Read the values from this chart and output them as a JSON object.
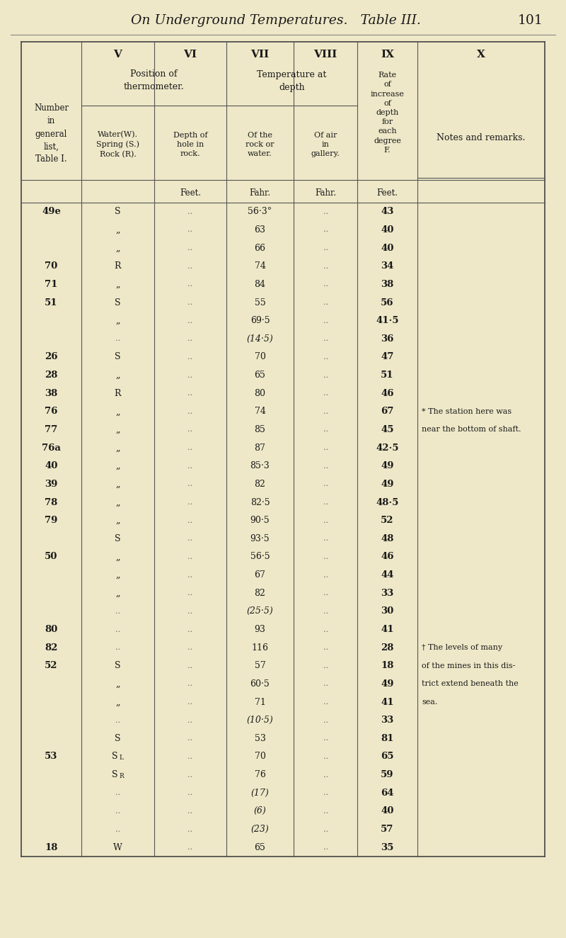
{
  "page_header": "On Underground Temperatures.   Table III.        101",
  "bg_color": "#eee8c8",
  "text_color": "#1a1a1a",
  "rows": [
    [
      "49e",
      "S",
      "..",
      "56·3°",
      "..",
      "43",
      ""
    ],
    [
      "",
      "„",
      "..",
      "63",
      "..",
      "40",
      ""
    ],
    [
      "",
      "„",
      "..",
      "66",
      "..",
      "40",
      ""
    ],
    [
      "70",
      "R",
      "..",
      "74",
      "..",
      "34",
      ""
    ],
    [
      "71",
      "„",
      "..",
      "84",
      "..",
      "38",
      ""
    ],
    [
      "51",
      "S",
      "..",
      "55",
      "..",
      "56",
      ""
    ],
    [
      "",
      "„",
      "..",
      "69·5",
      "..",
      "41·5",
      ""
    ],
    [
      "",
      "..",
      "..",
      "(14·5)",
      "..",
      "36",
      ""
    ],
    [
      "26",
      "S",
      "..",
      "70",
      "..",
      "47",
      ""
    ],
    [
      "28",
      "„",
      "..",
      "65",
      "..",
      "51",
      ""
    ],
    [
      "38",
      "R",
      "..",
      "80",
      "..",
      "46",
      ""
    ],
    [
      "76",
      "„",
      "..",
      "74",
      "..",
      "67",
      "* The station here was"
    ],
    [
      "77",
      "„",
      "..",
      "85",
      "..",
      "45",
      "near the bottom of shaft."
    ],
    [
      "76a",
      "„",
      "..",
      "87",
      "..",
      "42·5",
      ""
    ],
    [
      "40",
      "„",
      "..",
      "85·3",
      "..",
      "49",
      ""
    ],
    [
      "39",
      "„",
      "..",
      "82",
      "..",
      "49",
      ""
    ],
    [
      "78",
      "„",
      "..",
      "82·5",
      "..",
      "48·5",
      ""
    ],
    [
      "79",
      "„",
      "..",
      "90·5",
      "..",
      "52",
      ""
    ],
    [
      "",
      "S",
      "..",
      "93·5",
      "..",
      "48",
      ""
    ],
    [
      "50",
      "„",
      "..",
      "56·5",
      "..",
      "46",
      ""
    ],
    [
      "",
      "„",
      "..",
      "67",
      "..",
      "44",
      ""
    ],
    [
      "",
      "„",
      "..",
      "82",
      "..",
      "33",
      ""
    ],
    [
      "",
      "..",
      "..",
      "(25·5)",
      "..",
      "30",
      ""
    ],
    [
      "80",
      "..",
      "..",
      "93",
      "..",
      "41",
      ""
    ],
    [
      "82",
      "..",
      "..",
      "116",
      "..",
      "28",
      "† The levels of many"
    ],
    [
      "52",
      "S",
      "..",
      "57",
      "..",
      "18",
      "of the mines in this dis-"
    ],
    [
      "",
      "„",
      "..",
      "60·5",
      "..",
      "49",
      "trict extend beneath the"
    ],
    [
      "",
      "„",
      "..",
      "71",
      "..",
      "41",
      "sea."
    ],
    [
      "",
      "..",
      "..",
      "(10·5)",
      "..",
      "33",
      ""
    ],
    [
      "",
      "S",
      "..",
      "53",
      "..",
      "81",
      ""
    ],
    [
      "53",
      "Sₗ",
      "..",
      "70",
      "..",
      "65",
      ""
    ],
    [
      "",
      "Sᴿ",
      "..",
      "76",
      "..",
      "59",
      ""
    ],
    [
      "",
      "..",
      "..",
      "(17)",
      "..",
      "64",
      ""
    ],
    [
      "",
      "..",
      "..",
      "(6)",
      "..",
      "40",
      ""
    ],
    [
      "",
      "..",
      "..",
      "(23)",
      "..",
      "57",
      ""
    ],
    [
      "18",
      "W",
      "..",
      "65",
      "..",
      "35",
      ""
    ]
  ]
}
